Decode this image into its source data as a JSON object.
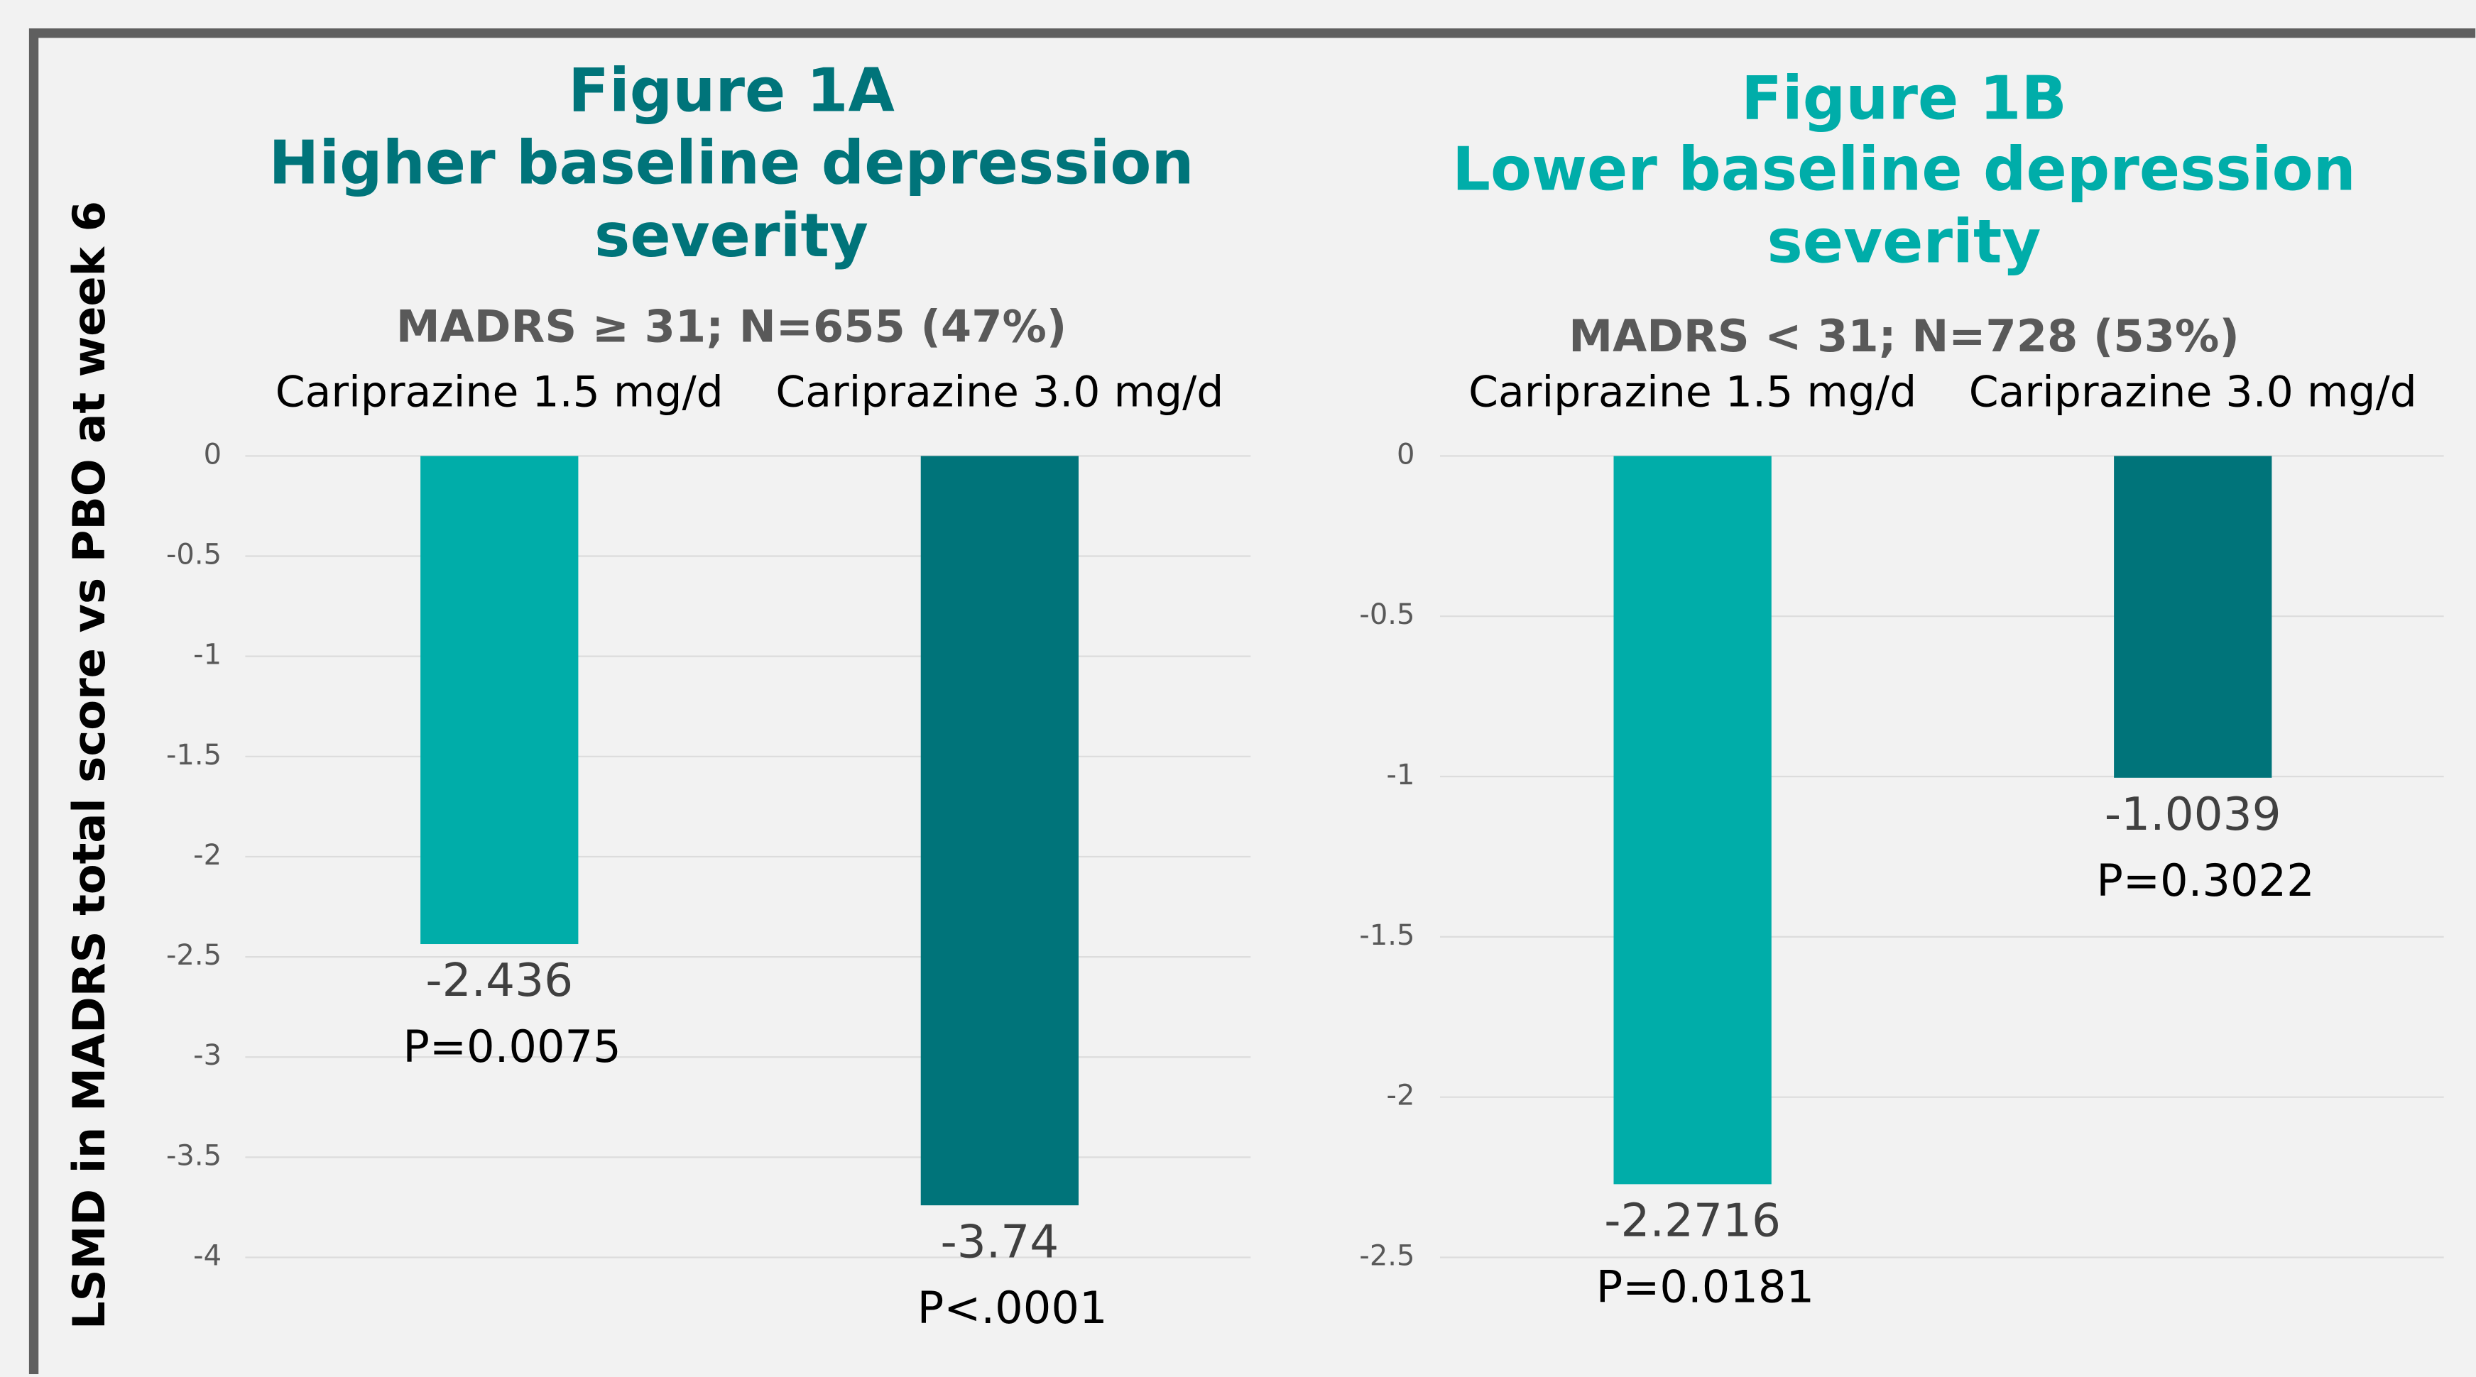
{
  "chart_data": [
    {
      "type": "bar",
      "title": [
        "Figure 1A",
        "Higher baseline depression",
        "severity"
      ],
      "title_color": "#00747a",
      "subtitle": "MADRS ≥ 31; N=655 (47%)",
      "ylabel": "LSMD in MADRS total score vs PBO at week 6",
      "categories": [
        "Cariprazine 1.5 mg/d",
        "Cariprazine 3.0 mg/d"
      ],
      "values": [
        -2.436,
        -3.74
      ],
      "p_values": [
        "P=0.0075",
        "P<.0001"
      ],
      "colors": [
        "#00ada9",
        "#00747a"
      ],
      "ylim": [
        -4,
        0
      ],
      "yticks": [
        0,
        -0.5,
        -1,
        -1.5,
        -2,
        -2.5,
        -3,
        -3.5,
        -4
      ],
      "grid": true
    },
    {
      "type": "bar",
      "title": [
        "Figure 1B",
        "Lower baseline depression",
        "severity"
      ],
      "title_color": "#00ada9",
      "subtitle": "MADRS < 31; N=728 (53%)",
      "categories": [
        "Cariprazine 1.5 mg/d",
        "Cariprazine 3.0 mg/d"
      ],
      "values": [
        -2.2716,
        -1.0039
      ],
      "p_values": [
        "P=0.0181",
        "P=0.3022"
      ],
      "colors": [
        "#00ada9",
        "#00747a"
      ],
      "ylim": [
        -2.5,
        0
      ],
      "yticks": [
        0,
        -0.5,
        -1,
        -1.5,
        -2,
        -2.5
      ],
      "grid": true
    }
  ]
}
